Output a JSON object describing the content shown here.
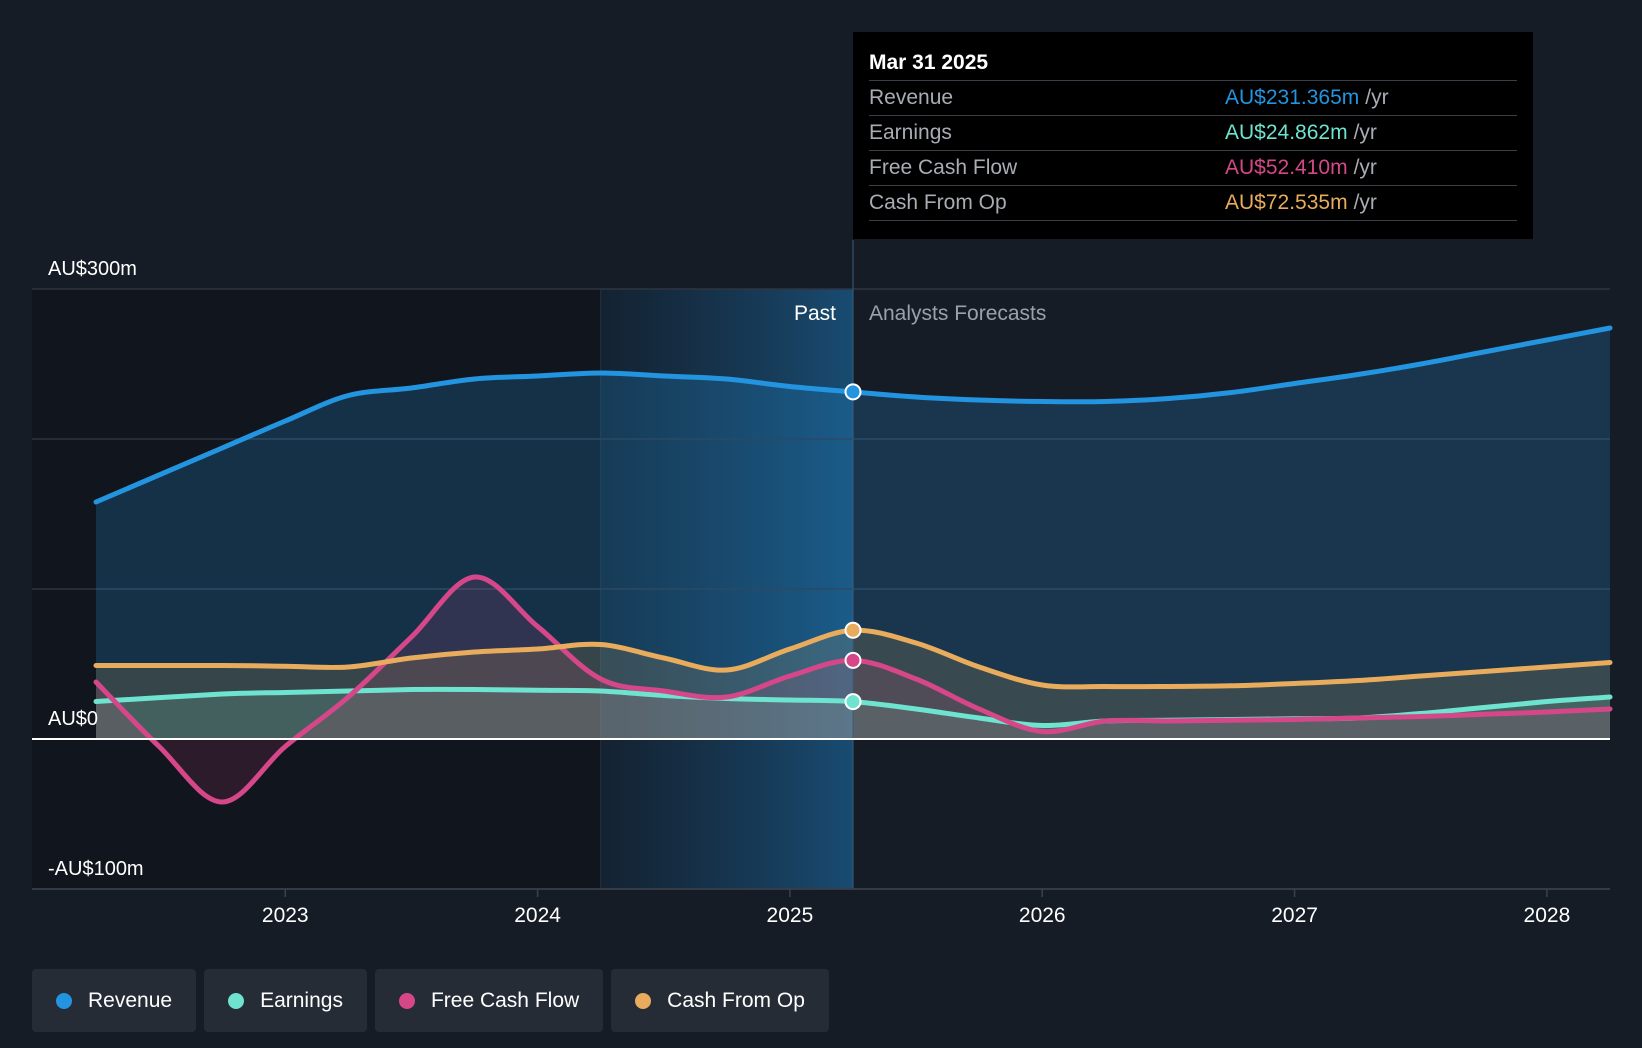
{
  "tooltip": {
    "date": "Mar 31 2025",
    "rows": [
      {
        "label": "Revenue",
        "value": "AU$231.365m",
        "unit": "/yr",
        "color": "#2394df"
      },
      {
        "label": "Earnings",
        "value": "AU$24.862m",
        "unit": "/yr",
        "color": "#6ee3cf"
      },
      {
        "label": "Free Cash Flow",
        "value": "AU$52.410m",
        "unit": "/yr",
        "color": "#d6478a"
      },
      {
        "label": "Cash From Op",
        "value": "AU$72.535m",
        "unit": "/yr",
        "color": "#e8ac5c"
      }
    ]
  },
  "labels": {
    "past": "Past",
    "forecast": "Analysts Forecasts"
  },
  "legend": [
    {
      "label": "Revenue",
      "color": "#2394df"
    },
    {
      "label": "Earnings",
      "color": "#6ee3cf"
    },
    {
      "label": "Free Cash Flow",
      "color": "#d6478a"
    },
    {
      "label": "Cash From Op",
      "color": "#e8ac5c"
    }
  ],
  "chart_data": {
    "type": "line",
    "title": "",
    "xlabel": "",
    "ylabel": "",
    "y_unit": "AU$m",
    "ylim": [
      -100,
      300
    ],
    "xlim": [
      2022.25,
      2028.25
    ],
    "y_ticks": [
      {
        "value": 300,
        "label": "AU$300m"
      },
      {
        "value": 0,
        "label": "AU$0"
      },
      {
        "value": -100,
        "label": "-AU$100m"
      }
    ],
    "x_ticks": [
      {
        "value": 2023,
        "label": "2023"
      },
      {
        "value": 2024,
        "label": "2024"
      },
      {
        "value": 2025,
        "label": "2025"
      },
      {
        "value": 2026,
        "label": "2026"
      },
      {
        "value": 2027,
        "label": "2027"
      },
      {
        "value": 2028,
        "label": "2028"
      }
    ],
    "gridlines": [
      300,
      200,
      100,
      0,
      -100
    ],
    "past_end": 2025.25,
    "highlight_start": 2024.25,
    "series": [
      {
        "name": "Revenue",
        "color": "#2394df",
        "points": [
          [
            2022.25,
            158
          ],
          [
            2022.75,
            194
          ],
          [
            2023.0,
            212
          ],
          [
            2023.25,
            229
          ],
          [
            2023.5,
            234
          ],
          [
            2023.75,
            240
          ],
          [
            2024.0,
            242
          ],
          [
            2024.25,
            244
          ],
          [
            2024.5,
            242
          ],
          [
            2024.75,
            240
          ],
          [
            2025.0,
            235
          ],
          [
            2025.25,
            231.4
          ],
          [
            2025.5,
            228
          ],
          [
            2025.75,
            226
          ],
          [
            2026.0,
            225
          ],
          [
            2026.25,
            225
          ],
          [
            2026.5,
            227
          ],
          [
            2026.75,
            231
          ],
          [
            2027.0,
            237
          ],
          [
            2027.25,
            243
          ],
          [
            2027.5,
            250
          ],
          [
            2027.75,
            258
          ],
          [
            2028.0,
            266
          ],
          [
            2028.25,
            274
          ]
        ]
      },
      {
        "name": "Earnings",
        "color": "#6ee3cf",
        "points": [
          [
            2022.25,
            25
          ],
          [
            2022.75,
            30
          ],
          [
            2023.0,
            31
          ],
          [
            2023.25,
            32
          ],
          [
            2023.5,
            33
          ],
          [
            2023.75,
            33
          ],
          [
            2024.0,
            32.5
          ],
          [
            2024.25,
            32
          ],
          [
            2024.5,
            29
          ],
          [
            2024.75,
            27
          ],
          [
            2025.0,
            26
          ],
          [
            2025.25,
            24.9
          ],
          [
            2025.5,
            20
          ],
          [
            2025.75,
            14
          ],
          [
            2026.0,
            9
          ],
          [
            2026.25,
            12
          ],
          [
            2026.5,
            12.5
          ],
          [
            2026.75,
            13
          ],
          [
            2027.0,
            13.5
          ],
          [
            2027.25,
            14
          ],
          [
            2027.5,
            17
          ],
          [
            2027.75,
            21
          ],
          [
            2028.0,
            25
          ],
          [
            2028.25,
            28
          ]
        ]
      },
      {
        "name": "Free Cash Flow",
        "color": "#d6478a",
        "points": [
          [
            2022.25,
            38
          ],
          [
            2022.5,
            -5
          ],
          [
            2022.75,
            -42
          ],
          [
            2023.0,
            -5
          ],
          [
            2023.25,
            28
          ],
          [
            2023.5,
            68
          ],
          [
            2023.75,
            108
          ],
          [
            2024.0,
            75
          ],
          [
            2024.25,
            40
          ],
          [
            2024.5,
            32
          ],
          [
            2024.75,
            28
          ],
          [
            2025.0,
            42
          ],
          [
            2025.25,
            52.4
          ],
          [
            2025.5,
            40
          ],
          [
            2025.75,
            20
          ],
          [
            2026.0,
            5
          ],
          [
            2026.25,
            12
          ],
          [
            2026.5,
            12
          ],
          [
            2026.75,
            12.5
          ],
          [
            2027.0,
            13
          ],
          [
            2027.25,
            14
          ],
          [
            2027.5,
            15
          ],
          [
            2027.75,
            16.5
          ],
          [
            2028.0,
            18
          ],
          [
            2028.25,
            20
          ]
        ]
      },
      {
        "name": "Cash From Op",
        "color": "#e8ac5c",
        "points": [
          [
            2022.25,
            49
          ],
          [
            2022.75,
            49
          ],
          [
            2023.0,
            48.5
          ],
          [
            2023.25,
            48
          ],
          [
            2023.5,
            54
          ],
          [
            2023.75,
            58
          ],
          [
            2024.0,
            60
          ],
          [
            2024.25,
            63
          ],
          [
            2024.5,
            54
          ],
          [
            2024.75,
            46
          ],
          [
            2025.0,
            60
          ],
          [
            2025.25,
            72.5
          ],
          [
            2025.5,
            64
          ],
          [
            2025.75,
            48
          ],
          [
            2026.0,
            36
          ],
          [
            2026.25,
            35
          ],
          [
            2026.5,
            35
          ],
          [
            2026.75,
            35.5
          ],
          [
            2027.0,
            37
          ],
          [
            2027.25,
            39
          ],
          [
            2027.5,
            42
          ],
          [
            2027.75,
            45
          ],
          [
            2028.0,
            48
          ],
          [
            2028.25,
            51
          ]
        ]
      }
    ]
  }
}
